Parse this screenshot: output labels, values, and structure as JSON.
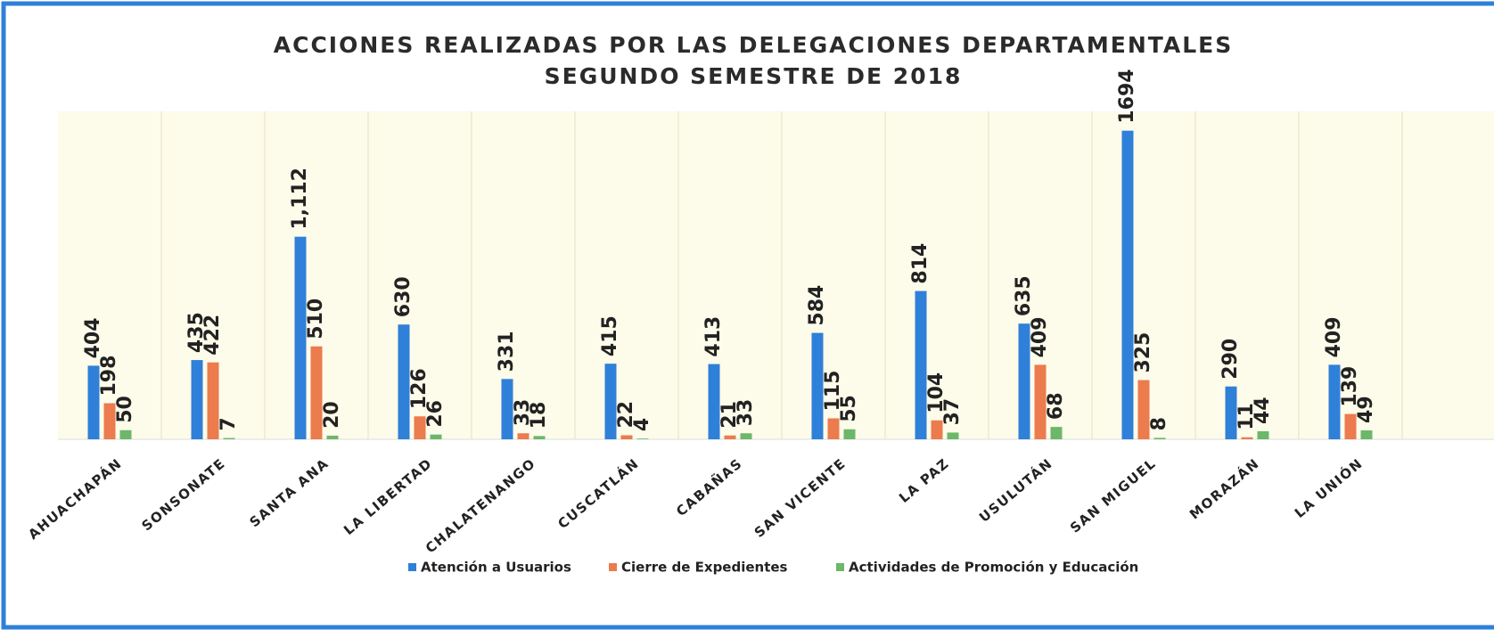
{
  "chart_data": {
    "type": "bar",
    "title": "ACCIONES REALIZADAS POR LAS DELEGACIONES DEPARTAMENTALES",
    "subtitle": "SEGUNDO SEMESTRE DE 2018",
    "categories": [
      "AHUACHAPÁN",
      "SONSONATE",
      "SANTA ANA",
      "LA LIBERTAD",
      "CHALATENANGO",
      "CUSCATLÁN",
      "CABAÑAS",
      "SAN VICENTE",
      "LA PAZ",
      "USULUTÁN",
      "SAN MIGUEL",
      "MORAZÁN",
      "LA UNIÓN"
    ],
    "series": [
      {
        "name": "Atención a Usuarios",
        "color": "#2f80d8",
        "values": [
          404,
          435,
          1112,
          630,
          331,
          415,
          413,
          584,
          814,
          635,
          1694,
          290,
          409
        ],
        "value_labels": [
          "404",
          "435",
          "1,112",
          "630",
          "331",
          "415",
          "413",
          "584",
          "814",
          "635",
          "1694",
          "290",
          "409"
        ]
      },
      {
        "name": "Cierre de Expedientes",
        "color": "#ec7b4e",
        "values": [
          198,
          422,
          510,
          126,
          33,
          22,
          21,
          115,
          104,
          409,
          325,
          11,
          139
        ]
      },
      {
        "name": "Actividades de Promoción y Educación",
        "color": "#6cb76a",
        "values": [
          50,
          7,
          20,
          26,
          18,
          4,
          33,
          55,
          37,
          68,
          8,
          44,
          49
        ]
      }
    ],
    "ylim": [
      0,
      1800
    ],
    "legend": "bottom"
  }
}
